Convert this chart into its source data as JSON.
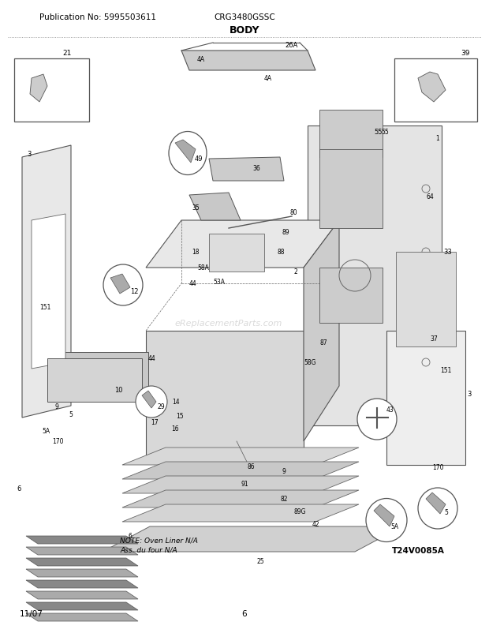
{
  "title": "BODY",
  "pub_no": "Publication No: 5995503611",
  "model": "CRG3480GSSC",
  "date": "11/07",
  "page": "6",
  "image_id": "T24V0085A",
  "note_line1": "NOTE: Oven Liner N/A",
  "note_line2": "Ass. du four N/A",
  "bg_color": "#ffffff",
  "gray1": "#c8c8c8",
  "gray2": "#e0e0e0",
  "gray3": "#b0b0b0",
  "dark": "#444444",
  "mid": "#888888",
  "watermark": "eReplacementParts.com",
  "header_fontsize": 7.5,
  "title_fontsize": 9,
  "label_fontsize": 6.0,
  "footer_fontsize": 7.5
}
